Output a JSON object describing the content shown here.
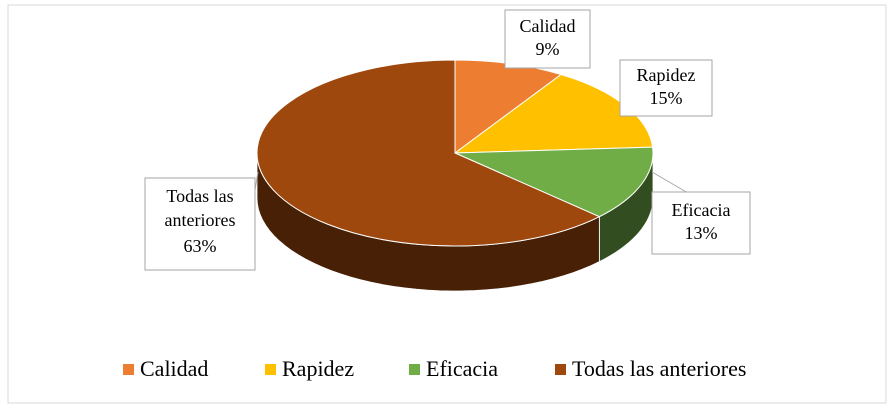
{
  "chart_data": {
    "type": "pie",
    "categories": [
      "Calidad",
      "Rapidez",
      "Eficacia",
      "Todas las anteriores"
    ],
    "values": [
      9,
      15,
      13,
      63
    ],
    "value_labels": [
      "9%",
      "15%",
      "13%",
      "63%"
    ],
    "colors": [
      "#ED7D31",
      "#FFC000",
      "#70AD47",
      "#9E480E"
    ],
    "legend": "bottom"
  }
}
